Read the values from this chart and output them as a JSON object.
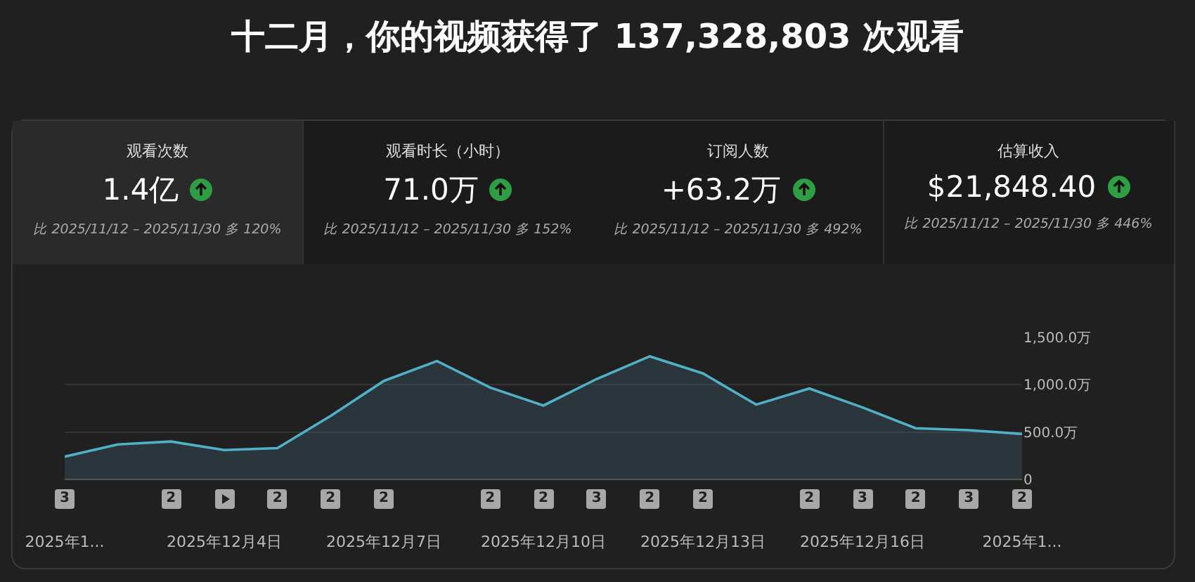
{
  "chart_data": [
    {
      "type": "other",
      "title": "十二月，你的视频获得了 137,328,803 次观看",
      "annotations": [
        "观看次数",
        "1.4亿",
        "比 2025/11/12 – 2025/11/30 多 120%",
        "观看时长（小时）",
        "71.0万",
        "比 2025/11/12 – 2025/11/30 多 152%",
        "订阅人数",
        "+63.2万",
        "比 2025/11/12 – 2025/11/30 多 492%",
        "估算收入",
        "$21,848.40",
        "比 2025/11/12 – 2025/11/30 多 446%"
      ]
    },
    {
      "type": "area",
      "categories": [
        "2025年1...",
        null,
        null,
        "2025年12月4日",
        null,
        null,
        "2025年12月7日",
        null,
        null,
        "2025年12月10日",
        null,
        null,
        "2025年12月13日",
        null,
        null,
        "2025年12月16日",
        null,
        null,
        "2025年1..."
      ],
      "series": [
        {
          "color": "#4fb0c6",
          "values": [
            240,
            370,
            400,
            310,
            330,
            670,
            1040,
            1250,
            970,
            780,
            1060,
            1300,
            1120,
            790,
            960,
            760,
            540,
            520,
            480
          ]
        }
      ],
      "ylim": [
        0,
        1500
      ],
      "yticks": [
        {
          "value": 0,
          "label": "0"
        },
        {
          "value": 500,
          "label": "500.0万"
        },
        {
          "value": 1000,
          "label": "1,000.0万"
        },
        {
          "value": 1500,
          "label": "1,500.0万"
        }
      ],
      "grid": "y",
      "marker": "none",
      "annotations": [
        "3",
        null,
        "2",
        null,
        "2",
        "2",
        "2",
        null,
        "2",
        "2",
        "3",
        "2",
        "2",
        null,
        "2",
        "3",
        "2",
        "3",
        "2"
      ]
    }
  ]
}
